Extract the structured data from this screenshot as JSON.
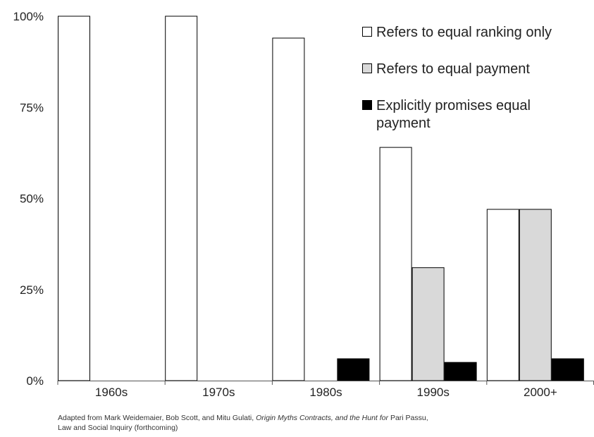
{
  "chart_data": {
    "type": "bar",
    "categories": [
      "1960s",
      "1970s",
      "1980s",
      "1990s",
      "2000+"
    ],
    "series": [
      {
        "name": "Refers to equal ranking only",
        "values": [
          100,
          100,
          94,
          64,
          47
        ],
        "color": "#ffffff"
      },
      {
        "name": "Refers to equal payment",
        "values": [
          0,
          0,
          0,
          31,
          47
        ],
        "color": "#d9d9d9"
      },
      {
        "name": "Explicitly promises equal payment",
        "values": [
          0,
          0,
          6,
          5,
          6
        ],
        "color": "#000000"
      }
    ],
    "ylim": [
      0,
      100
    ],
    "yticks": [
      "0%",
      "25%",
      "50%",
      "75%",
      "100%"
    ],
    "ytick_values": [
      0,
      25,
      50,
      75,
      100
    ],
    "grid": false,
    "legend_position": "top-right",
    "legend_label_lines": [
      [
        "Refers to equal ranking only"
      ],
      [
        "Refers to equal payment"
      ],
      [
        "Explicitly promises equal",
        "payment"
      ]
    ]
  },
  "caption": {
    "line1_a": "Adapted from Mark Weidemaier, Bob Scott, and Mitu Gulati, ",
    "line1_b": "Origin Myths Contracts, and the Hunt for ",
    "line1_c": "Pari Passu,",
    "line2": "Law and Social Inquiry (forthcoming)"
  }
}
